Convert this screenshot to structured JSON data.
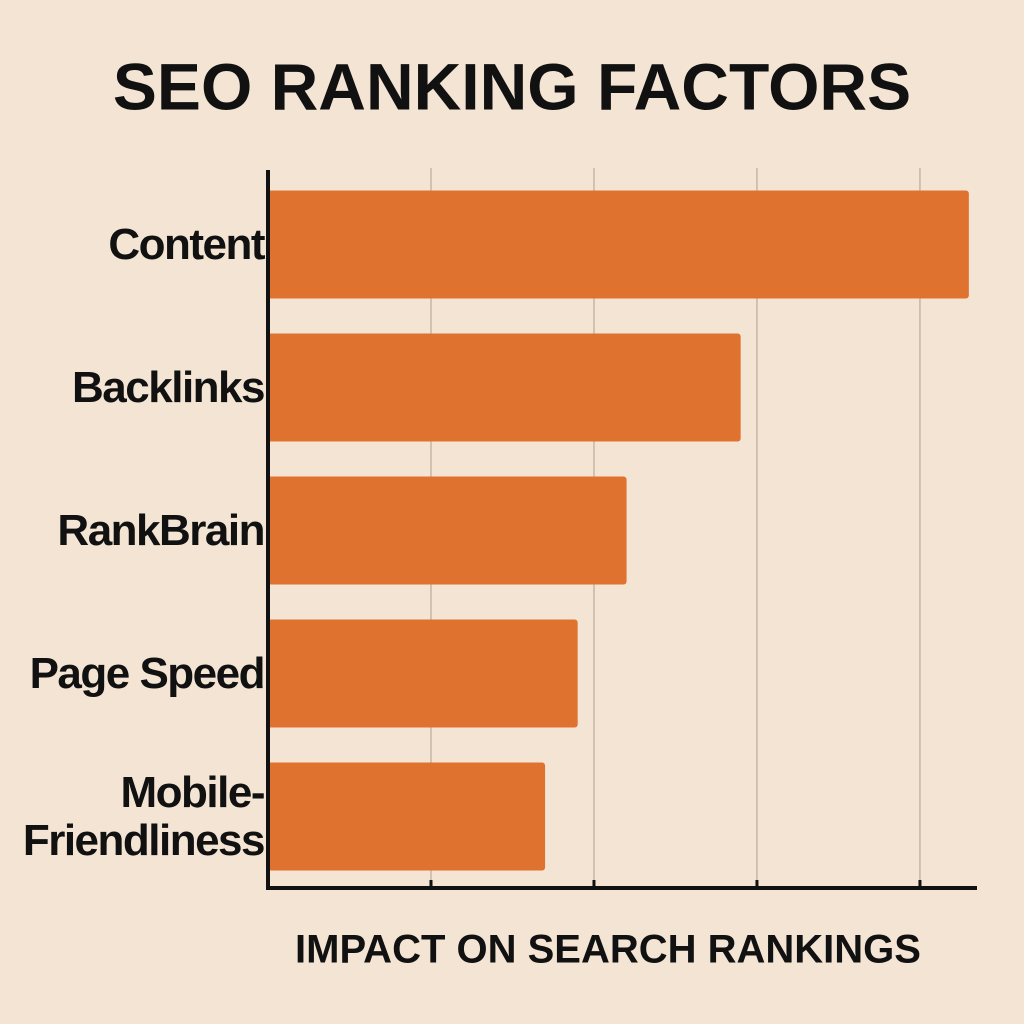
{
  "chart_data": {
    "type": "bar",
    "orientation": "horizontal",
    "title": "SEO RANKING FACTORS",
    "x_label": "IMPACT ON SEARCH RANKINGS",
    "categories": [
      "Content",
      "Backlinks",
      "RankBrain",
      "Page Speed",
      "Mobile-Friendliness"
    ],
    "values": [
      4.3,
      2.9,
      2.2,
      1.9,
      1.7
    ],
    "color": "#e07230",
    "xlim": [
      0,
      4.35
    ],
    "xticks": [
      1,
      2,
      3,
      4
    ],
    "grid": true
  }
}
